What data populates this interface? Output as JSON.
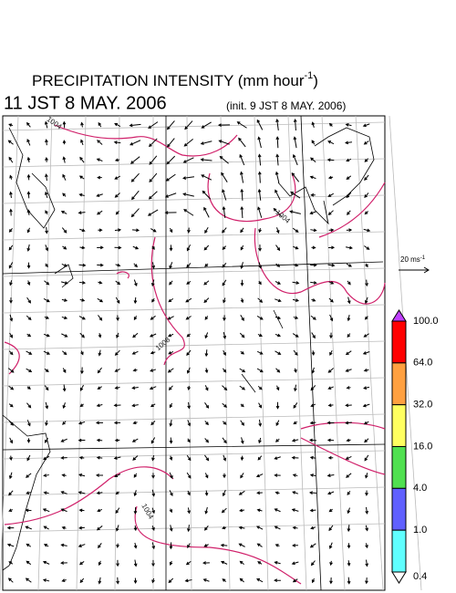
{
  "header": {
    "title": {
      "main": "PRECIPITATION INTENSITY (mm hour",
      "sup": "-1",
      "end": ")"
    },
    "valid_time": "11 JST 8 MAY. 2006",
    "init_time": "(init. 9 JST 8 MAY. 2006)"
  },
  "wind_scale": {
    "label": "20 ms",
    "sup": "-1"
  },
  "isobar_labels": [
    "1004",
    "1008",
    "1004",
    "1004"
  ],
  "colorbar": {
    "levels": [
      {
        "value": 100,
        "label": "100.0",
        "color": "#ff0000"
      },
      {
        "value": 64,
        "label": "64.0",
        "color": "#ffa040"
      },
      {
        "value": 32,
        "label": "32.0",
        "color": "#ffff60"
      },
      {
        "value": 16,
        "label": "16.0",
        "color": "#50e050"
      },
      {
        "value": 4,
        "label": "4.0",
        "color": "#6060ff"
      },
      {
        "value": 1,
        "label": "1.0",
        "color": "#60ffff"
      },
      {
        "value": 0.4,
        "label": "0.4",
        "color": "#ffffff"
      }
    ],
    "top_color": "#c040ff"
  }
}
